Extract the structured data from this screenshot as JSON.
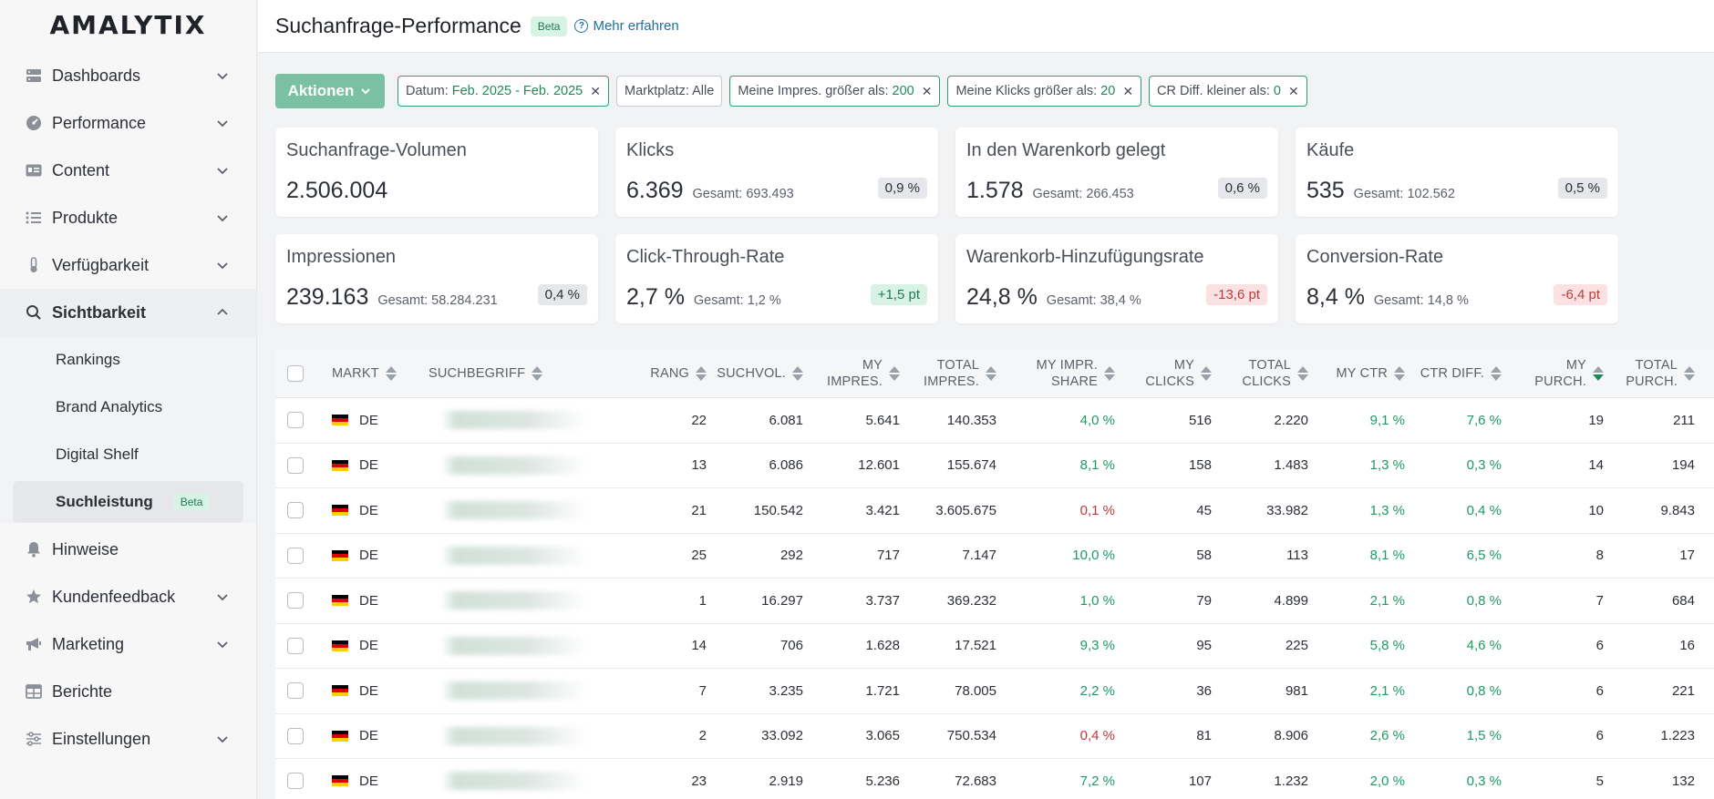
{
  "brand": "AMALYTIX",
  "sidebar": {
    "items": [
      {
        "label": "Dashboards",
        "icon": "dashboard-icon"
      },
      {
        "label": "Performance",
        "icon": "gauge-icon"
      },
      {
        "label": "Content",
        "icon": "id-card-icon"
      },
      {
        "label": "Produkte",
        "icon": "list-icon"
      },
      {
        "label": "Verfügbarkeit",
        "icon": "thermometer-icon"
      },
      {
        "label": "Sichtbarkeit",
        "icon": "search-icon"
      }
    ],
    "subitems": [
      "Rankings",
      "Brand Analytics",
      "Digital Shelf",
      "Suchleistung"
    ],
    "subitem_badge": "Beta",
    "items2": [
      {
        "label": "Hinweise",
        "icon": "bell-icon"
      },
      {
        "label": "Kundenfeedback",
        "icon": "star-icon"
      },
      {
        "label": "Marketing",
        "icon": "megaphone-icon"
      },
      {
        "label": "Berichte",
        "icon": "table-icon"
      },
      {
        "label": "Einstellungen",
        "icon": "sliders-icon"
      }
    ]
  },
  "header": {
    "title": "Suchanfrage-Performance",
    "badge": "Beta",
    "learn_more": "Mehr erfahren"
  },
  "filters": {
    "actions_label": "Aktionen",
    "chips": [
      {
        "label": "Datum:",
        "value": "Feb. 2025 - Feb. 2025"
      },
      {
        "label": "Marktplatz: Alle",
        "value": ""
      },
      {
        "label": "Meine Impres. größer als:",
        "value": "200"
      },
      {
        "label": "Meine Klicks größer als:",
        "value": "20"
      },
      {
        "label": "CR Diff. kleiner als:",
        "value": "0"
      }
    ]
  },
  "kpis": [
    {
      "title": "Suchanfrage-Volumen",
      "value": "2.506.004",
      "total": "",
      "pill": ""
    },
    {
      "title": "Klicks",
      "value": "6.369",
      "total": "Gesamt: 693.493",
      "pill": "0,9 %"
    },
    {
      "title": "In den Warenkorb gelegt",
      "value": "1.578",
      "total": "Gesamt: 266.453",
      "pill": "0,6 %"
    },
    {
      "title": "Käufe",
      "value": "535",
      "total": "Gesamt: 102.562",
      "pill": "0,5 %"
    },
    {
      "title": "Impressionen",
      "value": "239.163",
      "total": "Gesamt: 58.284.231",
      "pill": "0,4 %"
    },
    {
      "title": "Click-Through-Rate",
      "value": "2,7 %",
      "total": "Gesamt: 1,2 %",
      "pill": "+1,5 pt"
    },
    {
      "title": "Warenkorb-Hinzufügungsrate",
      "value": "24,8 %",
      "total": "Gesamt: 38,4 %",
      "pill": "-13,6 pt"
    },
    {
      "title": "Conversion-Rate",
      "value": "8,4 %",
      "total": "Gesamt: 14,8 %",
      "pill": "-6,4 pt"
    }
  ],
  "table": {
    "headers": {
      "markt": "MARKT",
      "such": "SUCHBEGRIFF",
      "rang": "RANG",
      "vol": "SUCHVOL.",
      "myimp1": "MY",
      "myimp2": "IMPRES.",
      "totimp1": "TOTAL",
      "totimp2": "IMPRES.",
      "share1": "MY IMPR.",
      "share2": "SHARE",
      "myclk1": "MY",
      "myclk2": "CLICKS",
      "totclk1": "TOTAL",
      "totclk2": "CLICKS",
      "ctr": "MY CTR",
      "ctrd": "CTR DIFF.",
      "mypur1": "MY",
      "mypur2": "PURCH.",
      "totpur1": "TOTAL",
      "totpur2": "PURCH."
    },
    "rows": [
      {
        "markt": "DE",
        "rang": "22",
        "vol": "6.081",
        "myimp": "5.641",
        "totimp": "140.353",
        "share": "4,0 %",
        "myclk": "516",
        "totclk": "2.220",
        "ctr": "9,1 %",
        "ctrd": "7,6 %",
        "mypur": "19",
        "totpur": "211"
      },
      {
        "markt": "DE",
        "rang": "13",
        "vol": "6.086",
        "myimp": "12.601",
        "totimp": "155.674",
        "share": "8,1 %",
        "myclk": "158",
        "totclk": "1.483",
        "ctr": "1,3 %",
        "ctrd": "0,3 %",
        "mypur": "14",
        "totpur": "194"
      },
      {
        "markt": "DE",
        "rang": "21",
        "vol": "150.542",
        "myimp": "3.421",
        "totimp": "3.605.675",
        "share": "0,1 %",
        "myclk": "45",
        "totclk": "33.982",
        "ctr": "1,3 %",
        "ctrd": "0,4 %",
        "mypur": "10",
        "totpur": "9.843"
      },
      {
        "markt": "DE",
        "rang": "25",
        "vol": "292",
        "myimp": "717",
        "totimp": "7.147",
        "share": "10,0 %",
        "myclk": "58",
        "totclk": "113",
        "ctr": "8,1 %",
        "ctrd": "6,5 %",
        "mypur": "8",
        "totpur": "17"
      },
      {
        "markt": "DE",
        "rang": "1",
        "vol": "16.297",
        "myimp": "3.737",
        "totimp": "369.232",
        "share": "1,0 %",
        "myclk": "79",
        "totclk": "4.899",
        "ctr": "2,1 %",
        "ctrd": "0,8 %",
        "mypur": "7",
        "totpur": "684"
      },
      {
        "markt": "DE",
        "rang": "14",
        "vol": "706",
        "myimp": "1.628",
        "totimp": "17.521",
        "share": "9,3 %",
        "myclk": "95",
        "totclk": "225",
        "ctr": "5,8 %",
        "ctrd": "4,6 %",
        "mypur": "6",
        "totpur": "16"
      },
      {
        "markt": "DE",
        "rang": "7",
        "vol": "3.235",
        "myimp": "1.721",
        "totimp": "78.005",
        "share": "2,2 %",
        "myclk": "36",
        "totclk": "981",
        "ctr": "2,1 %",
        "ctrd": "0,8 %",
        "mypur": "6",
        "totpur": "221"
      },
      {
        "markt": "DE",
        "rang": "2",
        "vol": "33.092",
        "myimp": "3.065",
        "totimp": "750.534",
        "share": "0,4 %",
        "myclk": "81",
        "totclk": "8.906",
        "ctr": "2,6 %",
        "ctrd": "1,5 %",
        "mypur": "6",
        "totpur": "1.223"
      },
      {
        "markt": "DE",
        "rang": "23",
        "vol": "2.919",
        "myimp": "5.236",
        "totimp": "72.683",
        "share": "7,2 %",
        "myclk": "107",
        "totclk": "1.232",
        "ctr": "2,0 %",
        "ctrd": "0,3 %",
        "mypur": "5",
        "totpur": "132"
      }
    ]
  },
  "colors": {
    "accent": "#79c1a2",
    "positive": "#1e9a66",
    "negative": "#c0393b"
  }
}
